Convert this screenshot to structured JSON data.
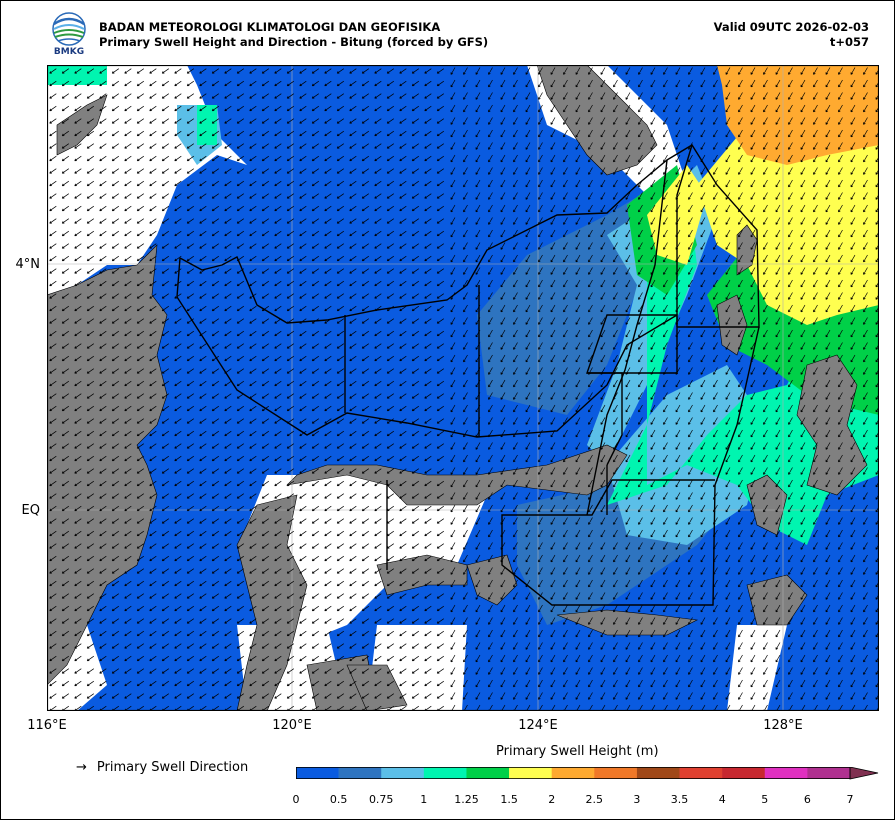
{
  "header": {
    "logo_text": "BMKG",
    "agency": "BADAN METEOROLOGI KLIMATOLOGI DAN GEOFISIKA",
    "product": "Primary Swell Height and Direction - Bitung (forced by GFS)",
    "valid": "Valid 09UTC 2026-02-03",
    "lead": "t+057"
  },
  "axes": {
    "lat_labels": [
      "4°N",
      "EQ"
    ],
    "lon_labels": [
      "116°E",
      "120°E",
      "124°E",
      "128°E"
    ]
  },
  "legend": {
    "arrow": "→",
    "direction_label": "Primary Swell Direction",
    "colorbar_title": "Primary Swell Height (m)",
    "ticks": [
      "0",
      "0.5",
      "0.75",
      "1",
      "1.25",
      "1.5",
      "2",
      "2.5",
      "3",
      "3.5",
      "4",
      "5",
      "6",
      "7"
    ],
    "colors": [
      "#0a5be0",
      "#2e74c0",
      "#5bbfe8",
      "#00f5b0",
      "#00d048",
      "#ffff50",
      "#ffaa30",
      "#f07828",
      "#a04818",
      "#e04030",
      "#c82830",
      "#e030c0",
      "#b03090",
      "#803050"
    ]
  },
  "map_colors": {
    "land": "#808080",
    "no_data": "#ffffff",
    "boundary": "#000000"
  }
}
